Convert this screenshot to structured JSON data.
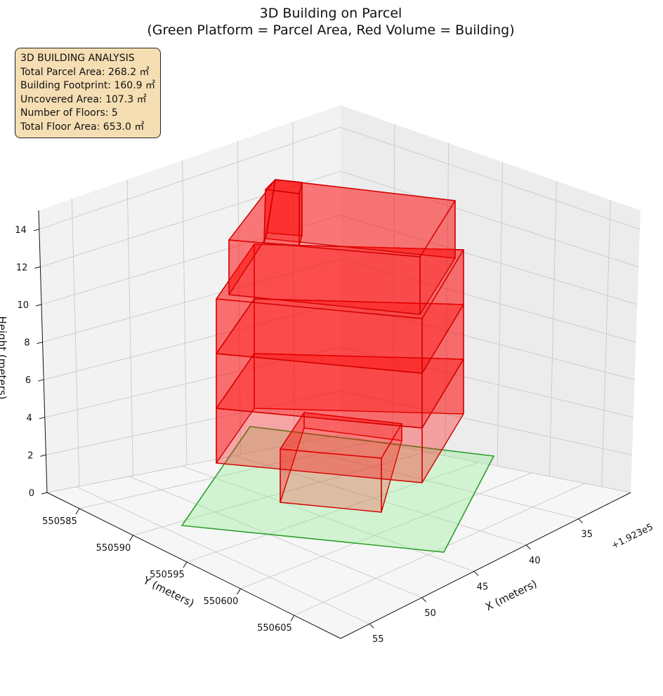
{
  "chart_data": {
    "type": "3d-block",
    "title": "3D Building on Parcel",
    "subtitle": "(Green Platform = Parcel Area, Red Volume = Building)",
    "xlabel": "X (meters)",
    "ylabel": "Y (meters)",
    "zlabel": "Height (meters)",
    "x_offset_label": "+1.923e5",
    "x_ticks": [
      "35",
      "40",
      "45",
      "50",
      "55"
    ],
    "y_ticks": [
      "550585",
      "550590",
      "550595",
      "550600",
      "550605"
    ],
    "z_ticks": [
      "0",
      "2",
      "4",
      "6",
      "8",
      "10",
      "12",
      "14"
    ],
    "parcel_color": "#90ee90",
    "building_color": "#ff0000",
    "floors": 5,
    "floor_height_m": 3.0
  },
  "info": {
    "heading": "3D BUILDING ANALYSIS",
    "total_parcel_area": "Total Parcel Area: 268.2 ㎡",
    "building_footprint": "Building Footprint: 160.9 ㎡",
    "uncovered_area": "Uncovered Area: 107.3 ㎡",
    "num_floors": "Number of Floors: 5",
    "total_floor_area": "Total Floor Area: 653.0 ㎡"
  }
}
